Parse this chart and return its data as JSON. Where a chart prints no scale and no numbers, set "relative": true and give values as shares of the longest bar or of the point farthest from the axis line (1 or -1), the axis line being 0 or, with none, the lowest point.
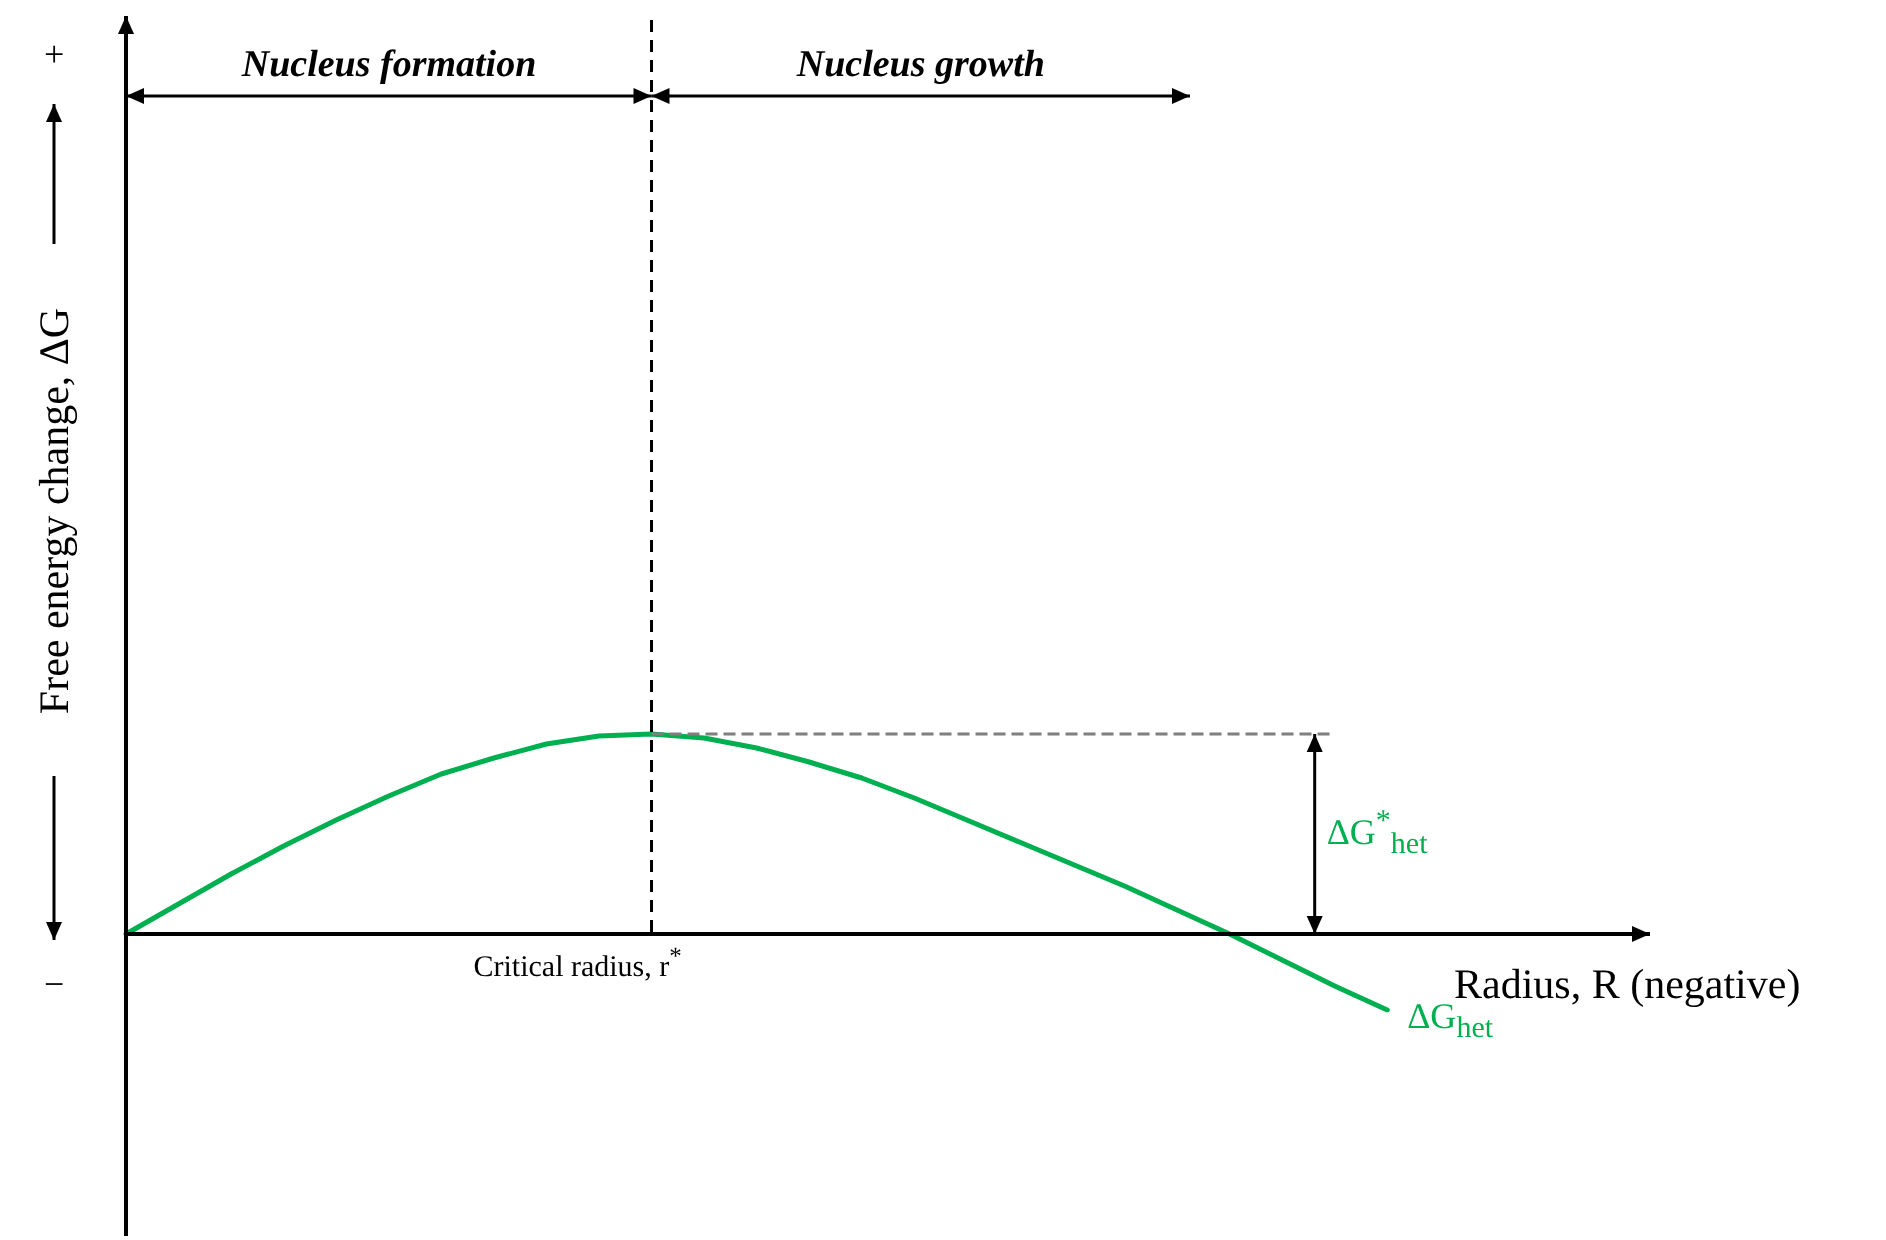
{
  "chart_data": {
    "type": "line",
    "relative": true,
    "marker": "none",
    "xlabel": "Radius, R (negative)",
    "ylabel": "Free energy change, ΔG",
    "categories": [
      null,
      null,
      null,
      null,
      null,
      null,
      null,
      null,
      null,
      null,
      null,
      null,
      null,
      null,
      null,
      null,
      null,
      null,
      null,
      null,
      null,
      null,
      null,
      null,
      null,
      null,
      null,
      null,
      null,
      null
    ],
    "series": [
      {
        "name": "ΔG$_{het}$",
        "color": "#00b050",
        "values": [
          0,
          0.15,
          0.3,
          0.44,
          0.57,
          0.69,
          0.8,
          0.88,
          0.95,
          0.99,
          1,
          0.98,
          0.93,
          0.86,
          0.78,
          0.68,
          0.57,
          0.46,
          0.35,
          0.24,
          0.12,
          0,
          -0.13,
          -0.26,
          -0.38,
          null,
          null,
          null,
          null,
          null
        ]
      }
    ],
    "ref_lines": [
      {
        "axis": "y",
        "value": 1,
        "color": "#7f7f7f",
        "line_style": "dashed"
      }
    ],
    "annotations": [
      "Nucleus formation",
      "Nucleus growth",
      "Critical radius, r$^{*}$",
      "ΔG$^{*}$$_{het}$",
      "+",
      "−"
    ]
  }
}
